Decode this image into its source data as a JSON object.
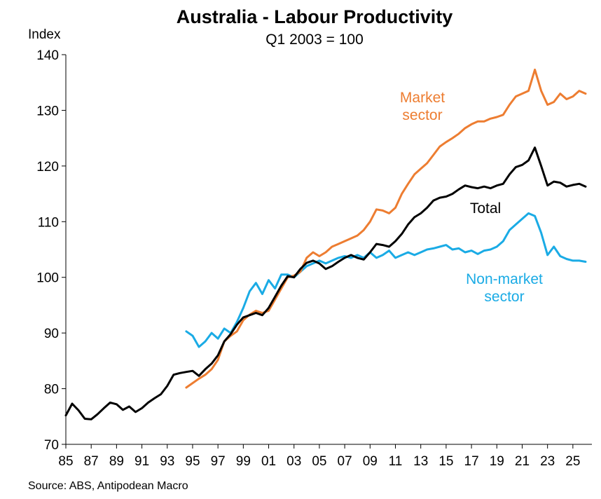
{
  "chart_data": {
    "type": "line",
    "title": "Australia - Labour Productivity",
    "subtitle": "Q1 2003 = 100",
    "ylabel": "Index",
    "source": "Source: ABS, Antipodean Macro",
    "ylim": [
      70,
      140
    ],
    "yticks": [
      "70",
      "80",
      "90",
      "100",
      "110",
      "120",
      "130",
      "140"
    ],
    "xlim": [
      1985,
      2026.5
    ],
    "xticks": [
      "85",
      "87",
      "89",
      "91",
      "93",
      "95",
      "97",
      "99",
      "01",
      "03",
      "05",
      "07",
      "09",
      "11",
      "13",
      "15",
      "17",
      "19",
      "21",
      "23",
      "25"
    ],
    "grid": false,
    "series": [
      {
        "name": "Total",
        "label_lines": [
          "Total"
        ],
        "color": "#000000",
        "points": [
          [
            1985.0,
            75.2
          ],
          [
            1985.5,
            77.3
          ],
          [
            1986.0,
            76.1
          ],
          [
            1986.5,
            74.6
          ],
          [
            1987.0,
            74.5
          ],
          [
            1987.5,
            75.4
          ],
          [
            1988.0,
            76.5
          ],
          [
            1988.5,
            77.5
          ],
          [
            1989.0,
            77.2
          ],
          [
            1989.5,
            76.2
          ],
          [
            1990.0,
            76.8
          ],
          [
            1990.5,
            75.8
          ],
          [
            1991.0,
            76.5
          ],
          [
            1991.5,
            77.5
          ],
          [
            1992.0,
            78.3
          ],
          [
            1992.5,
            79.0
          ],
          [
            1993.0,
            80.5
          ],
          [
            1993.5,
            82.5
          ],
          [
            1994.0,
            82.8
          ],
          [
            1994.5,
            83.0
          ],
          [
            1995.0,
            83.2
          ],
          [
            1995.5,
            82.3
          ],
          [
            1996.0,
            83.5
          ],
          [
            1996.5,
            84.5
          ],
          [
            1997.0,
            86.0
          ],
          [
            1997.5,
            88.5
          ],
          [
            1998.0,
            89.8
          ],
          [
            1998.5,
            91.5
          ],
          [
            1999.0,
            92.8
          ],
          [
            1999.5,
            93.2
          ],
          [
            2000.0,
            93.6
          ],
          [
            2000.5,
            93.2
          ],
          [
            2001.0,
            94.5
          ],
          [
            2001.5,
            96.5
          ],
          [
            2002.0,
            98.5
          ],
          [
            2002.5,
            100.2
          ],
          [
            2003.0,
            100.0
          ],
          [
            2003.5,
            101.5
          ],
          [
            2004.0,
            102.6
          ],
          [
            2004.5,
            103.0
          ],
          [
            2005.0,
            102.5
          ],
          [
            2005.5,
            101.5
          ],
          [
            2006.0,
            102.0
          ],
          [
            2006.5,
            102.8
          ],
          [
            2007.0,
            103.5
          ],
          [
            2007.5,
            104.0
          ],
          [
            2008.0,
            103.5
          ],
          [
            2008.5,
            103.2
          ],
          [
            2009.0,
            104.5
          ],
          [
            2009.5,
            106.0
          ],
          [
            2010.0,
            105.8
          ],
          [
            2010.5,
            105.5
          ],
          [
            2011.0,
            106.5
          ],
          [
            2011.5,
            107.8
          ],
          [
            2012.0,
            109.5
          ],
          [
            2012.5,
            110.8
          ],
          [
            2013.0,
            111.5
          ],
          [
            2013.5,
            112.5
          ],
          [
            2014.0,
            113.8
          ],
          [
            2014.5,
            114.3
          ],
          [
            2015.0,
            114.5
          ],
          [
            2015.5,
            115.0
          ],
          [
            2016.0,
            115.8
          ],
          [
            2016.5,
            116.5
          ],
          [
            2017.0,
            116.2
          ],
          [
            2017.5,
            116.0
          ],
          [
            2018.0,
            116.3
          ],
          [
            2018.5,
            116.0
          ],
          [
            2019.0,
            116.5
          ],
          [
            2019.5,
            116.8
          ],
          [
            2020.0,
            118.5
          ],
          [
            2020.5,
            119.8
          ],
          [
            2021.0,
            120.2
          ],
          [
            2021.5,
            121.0
          ],
          [
            2022.0,
            123.3
          ],
          [
            2022.5,
            120.0
          ],
          [
            2023.0,
            116.5
          ],
          [
            2023.5,
            117.2
          ],
          [
            2024.0,
            117.0
          ],
          [
            2024.5,
            116.3
          ],
          [
            2025.0,
            116.6
          ],
          [
            2025.5,
            116.8
          ],
          [
            2026.0,
            116.3
          ]
        ]
      },
      {
        "name": "Market sector",
        "label_lines": [
          "Market",
          "sector"
        ],
        "color": "#ED7D31",
        "points": [
          [
            1994.5,
            80.2
          ],
          [
            1995.0,
            81.0
          ],
          [
            1995.5,
            81.8
          ],
          [
            1996.0,
            82.5
          ],
          [
            1996.5,
            83.5
          ],
          [
            1997.0,
            85.2
          ],
          [
            1997.5,
            88.5
          ],
          [
            1998.0,
            89.5
          ],
          [
            1998.5,
            90.3
          ],
          [
            1999.0,
            92.3
          ],
          [
            1999.5,
            93.3
          ],
          [
            2000.0,
            94.0
          ],
          [
            2000.5,
            93.6
          ],
          [
            2001.0,
            94.0
          ],
          [
            2001.5,
            96.0
          ],
          [
            2002.0,
            98.0
          ],
          [
            2002.5,
            100.0
          ],
          [
            2003.0,
            100.3
          ],
          [
            2003.5,
            101.0
          ],
          [
            2004.0,
            103.5
          ],
          [
            2004.5,
            104.5
          ],
          [
            2005.0,
            103.8
          ],
          [
            2005.5,
            104.5
          ],
          [
            2006.0,
            105.5
          ],
          [
            2006.5,
            106.0
          ],
          [
            2007.0,
            106.5
          ],
          [
            2007.5,
            107.0
          ],
          [
            2008.0,
            107.5
          ],
          [
            2008.5,
            108.5
          ],
          [
            2009.0,
            110.0
          ],
          [
            2009.5,
            112.2
          ],
          [
            2010.0,
            112.0
          ],
          [
            2010.5,
            111.5
          ],
          [
            2011.0,
            112.5
          ],
          [
            2011.5,
            115.0
          ],
          [
            2012.0,
            116.8
          ],
          [
            2012.5,
            118.5
          ],
          [
            2013.0,
            119.5
          ],
          [
            2013.5,
            120.5
          ],
          [
            2014.0,
            122.0
          ],
          [
            2014.5,
            123.5
          ],
          [
            2015.0,
            124.3
          ],
          [
            2015.5,
            125.0
          ],
          [
            2016.0,
            125.8
          ],
          [
            2016.5,
            126.8
          ],
          [
            2017.0,
            127.5
          ],
          [
            2017.5,
            128.0
          ],
          [
            2018.0,
            128.0
          ],
          [
            2018.5,
            128.5
          ],
          [
            2019.0,
            128.8
          ],
          [
            2019.5,
            129.2
          ],
          [
            2020.0,
            131.0
          ],
          [
            2020.5,
            132.5
          ],
          [
            2021.0,
            133.0
          ],
          [
            2021.5,
            133.5
          ],
          [
            2022.0,
            137.3
          ],
          [
            2022.5,
            133.5
          ],
          [
            2023.0,
            131.0
          ],
          [
            2023.5,
            131.5
          ],
          [
            2024.0,
            133.0
          ],
          [
            2024.5,
            132.0
          ],
          [
            2025.0,
            132.5
          ],
          [
            2025.5,
            133.5
          ],
          [
            2026.0,
            133.0
          ]
        ]
      },
      {
        "name": "Non-market sector",
        "label_lines": [
          "Non-market",
          "sector"
        ],
        "color": "#1AABE5",
        "points": [
          [
            1994.5,
            90.3
          ],
          [
            1995.0,
            89.5
          ],
          [
            1995.5,
            87.5
          ],
          [
            1996.0,
            88.5
          ],
          [
            1996.5,
            90.0
          ],
          [
            1997.0,
            89.0
          ],
          [
            1997.5,
            90.8
          ],
          [
            1998.0,
            90.0
          ],
          [
            1998.5,
            92.0
          ],
          [
            1999.0,
            94.5
          ],
          [
            1999.5,
            97.5
          ],
          [
            2000.0,
            99.0
          ],
          [
            2000.5,
            97.0
          ],
          [
            2001.0,
            99.5
          ],
          [
            2001.5,
            98.0
          ],
          [
            2002.0,
            100.5
          ],
          [
            2002.5,
            100.5
          ],
          [
            2003.0,
            100.0
          ],
          [
            2003.5,
            101.0
          ],
          [
            2004.0,
            102.0
          ],
          [
            2004.5,
            102.5
          ],
          [
            2005.0,
            103.0
          ],
          [
            2005.5,
            102.5
          ],
          [
            2006.0,
            103.0
          ],
          [
            2006.5,
            103.5
          ],
          [
            2007.0,
            103.8
          ],
          [
            2007.5,
            103.5
          ],
          [
            2008.0,
            104.0
          ],
          [
            2008.5,
            103.5
          ],
          [
            2009.0,
            104.5
          ],
          [
            2009.5,
            103.5
          ],
          [
            2010.0,
            104.0
          ],
          [
            2010.5,
            104.8
          ],
          [
            2011.0,
            103.5
          ],
          [
            2011.5,
            104.0
          ],
          [
            2012.0,
            104.5
          ],
          [
            2012.5,
            104.0
          ],
          [
            2013.0,
            104.5
          ],
          [
            2013.5,
            105.0
          ],
          [
            2014.0,
            105.2
          ],
          [
            2014.5,
            105.5
          ],
          [
            2015.0,
            105.8
          ],
          [
            2015.5,
            105.0
          ],
          [
            2016.0,
            105.2
          ],
          [
            2016.5,
            104.5
          ],
          [
            2017.0,
            104.8
          ],
          [
            2017.5,
            104.2
          ],
          [
            2018.0,
            104.8
          ],
          [
            2018.5,
            105.0
          ],
          [
            2019.0,
            105.5
          ],
          [
            2019.5,
            106.5
          ],
          [
            2020.0,
            108.5
          ],
          [
            2020.5,
            109.5
          ],
          [
            2021.0,
            110.5
          ],
          [
            2021.5,
            111.5
          ],
          [
            2022.0,
            111.0
          ],
          [
            2022.5,
            108.0
          ],
          [
            2023.0,
            104.0
          ],
          [
            2023.5,
            105.5
          ],
          [
            2024.0,
            103.8
          ],
          [
            2024.5,
            103.3
          ],
          [
            2025.0,
            103.0
          ],
          [
            2025.5,
            103.0
          ],
          [
            2026.0,
            102.8
          ]
        ]
      }
    ]
  }
}
